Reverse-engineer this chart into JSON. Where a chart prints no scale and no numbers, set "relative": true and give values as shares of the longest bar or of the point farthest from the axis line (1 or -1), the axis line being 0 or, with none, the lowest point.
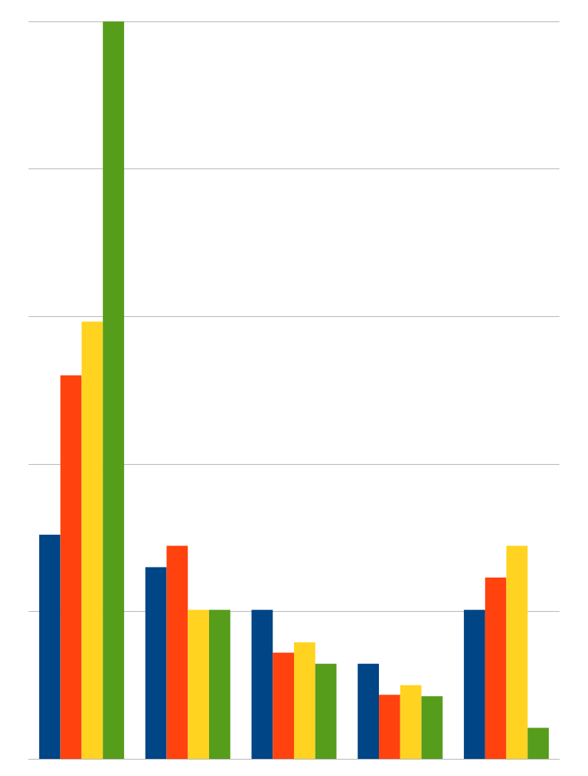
{
  "chart_data": {
    "type": "bar",
    "relative": true,
    "grid": "y",
    "categories": [
      null,
      null,
      null,
      null,
      null
    ],
    "series": [
      {
        "color": "#004586",
        "values": [
          0.304,
          0.26,
          0.202,
          0.129,
          0.202
        ]
      },
      {
        "color": "#ff420e",
        "values": [
          0.52,
          0.289,
          0.144,
          0.087,
          0.246
        ]
      },
      {
        "color": "#ffd320",
        "values": [
          0.593,
          0.202,
          0.158,
          0.1,
          0.289
        ]
      },
      {
        "color": "#579d1c",
        "values": [
          1,
          0.202,
          0.129,
          0.085,
          0.042
        ]
      }
    ]
  }
}
